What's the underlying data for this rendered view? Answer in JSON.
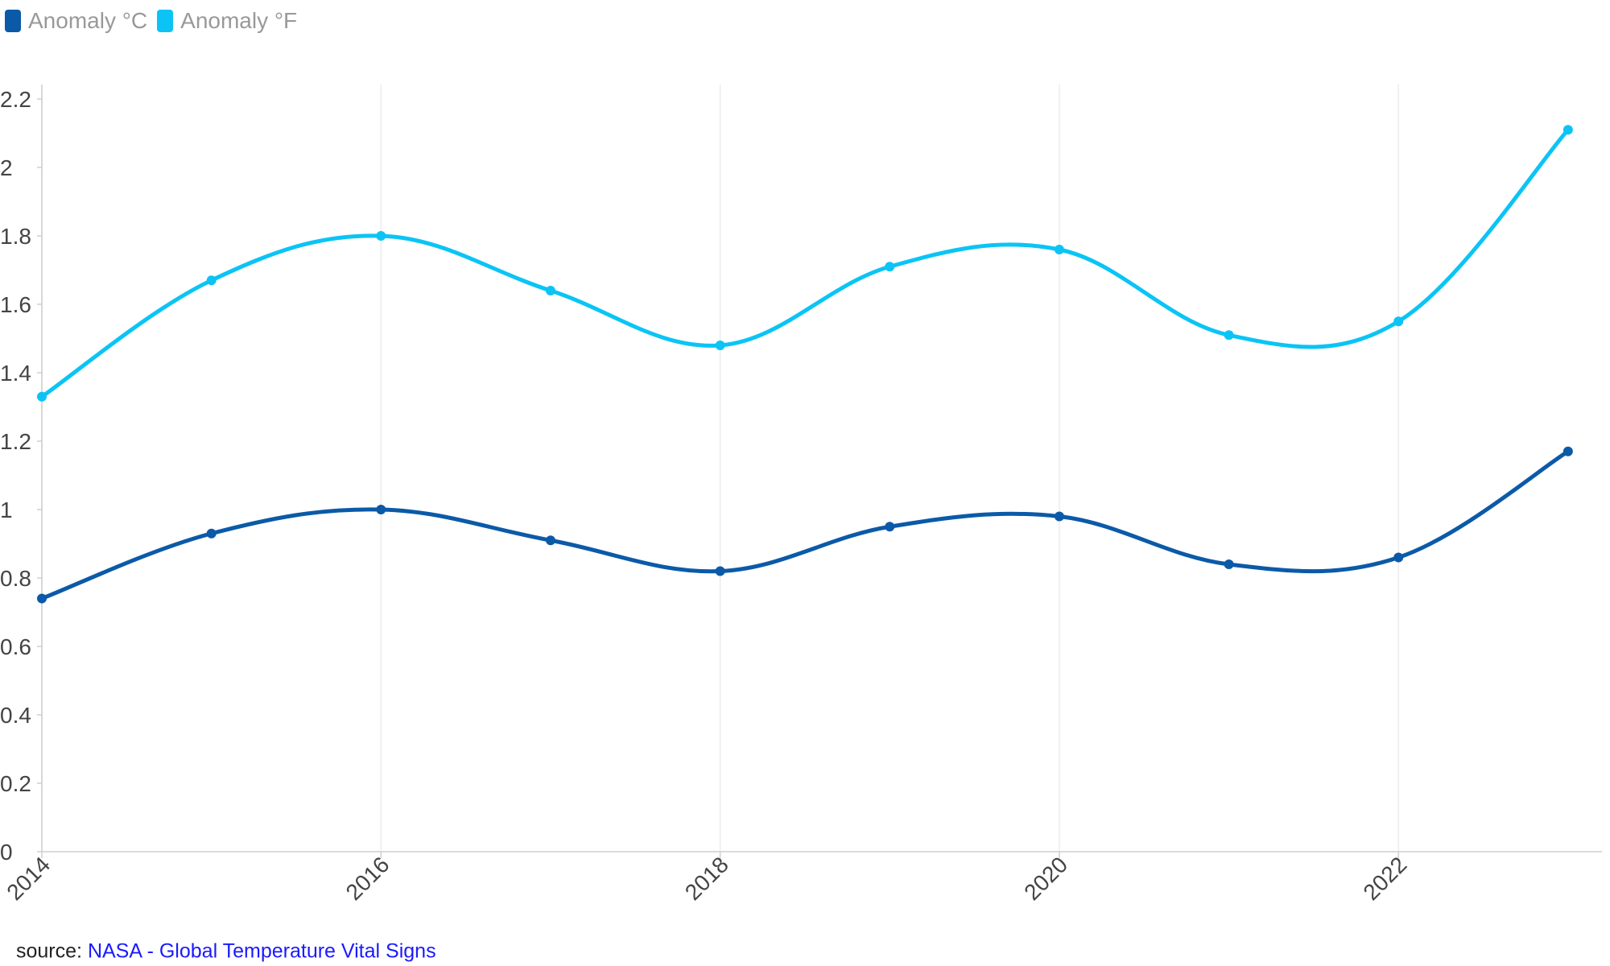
{
  "legend": [
    {
      "label": "Anomaly °C",
      "color": "#0b5aa8"
    },
    {
      "label": "Anomaly °F",
      "color": "#0bc4f5"
    }
  ],
  "source": {
    "prefix": "source:",
    "link_text": "NASA - Global Temperature Vital Signs"
  },
  "chart_data": {
    "type": "line",
    "x": [
      2014,
      2015,
      2016,
      2017,
      2018,
      2019,
      2020,
      2021,
      2022,
      2023
    ],
    "x_ticks": [
      "2014",
      "2016",
      "2018",
      "2020",
      "2022"
    ],
    "y_ticks": [
      "0",
      "0.2",
      "0.4",
      "0.6",
      "0.8",
      "1",
      "1.2",
      "1.4",
      "1.6",
      "1.8",
      "2",
      "2.2"
    ],
    "ylim": [
      0,
      2.2
    ],
    "xlim": [
      2014,
      2023.2
    ],
    "grid": "vertical",
    "legend_position": "top-left",
    "series": [
      {
        "name": "Anomaly °C",
        "color": "#0b5aa8",
        "values": [
          0.74,
          0.93,
          1.0,
          0.91,
          0.82,
          0.95,
          0.98,
          0.84,
          0.86,
          1.17
        ]
      },
      {
        "name": "Anomaly °F",
        "color": "#0bc4f5",
        "values": [
          1.33,
          1.67,
          1.8,
          1.64,
          1.48,
          1.71,
          1.76,
          1.51,
          1.55,
          2.11
        ]
      }
    ]
  }
}
